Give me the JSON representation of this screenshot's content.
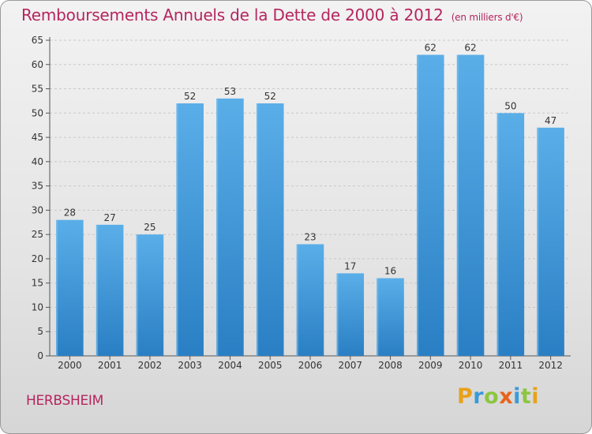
{
  "header": {
    "title": "Remboursements Annuels de la Dette de 2000 à 2012",
    "unit": "(en milliers d'€)"
  },
  "location": "HERBSHEIM",
  "logo": {
    "letters": [
      "P",
      "r",
      "o",
      "x",
      "i",
      "t",
      "i"
    ],
    "colors": [
      "#e8a21a",
      "#3a9ad9",
      "#8cc63f",
      "#e8641a",
      "#3a9ad9",
      "#8cc63f",
      "#e8a21a"
    ]
  },
  "colors": {
    "bar_light": "#5aaee8",
    "bar_dark": "#2a7fc4",
    "grid": "#c8c8c8",
    "axis": "#555555"
  },
  "chart_data": {
    "type": "bar",
    "title": "Remboursements Annuels de la Dette de 2000 à 2012",
    "xlabel": "",
    "ylabel": "",
    "categories": [
      "2000",
      "2001",
      "2002",
      "2003",
      "2004",
      "2005",
      "2006",
      "2007",
      "2008",
      "2009",
      "2010",
      "2011",
      "2012"
    ],
    "values": [
      28,
      27,
      25,
      52,
      53,
      52,
      23,
      17,
      16,
      62,
      62,
      50,
      47
    ],
    "ylim": [
      0,
      65
    ],
    "yticks": [
      0,
      5,
      10,
      15,
      20,
      25,
      30,
      35,
      40,
      45,
      50,
      55,
      60,
      65
    ],
    "grid": true
  }
}
